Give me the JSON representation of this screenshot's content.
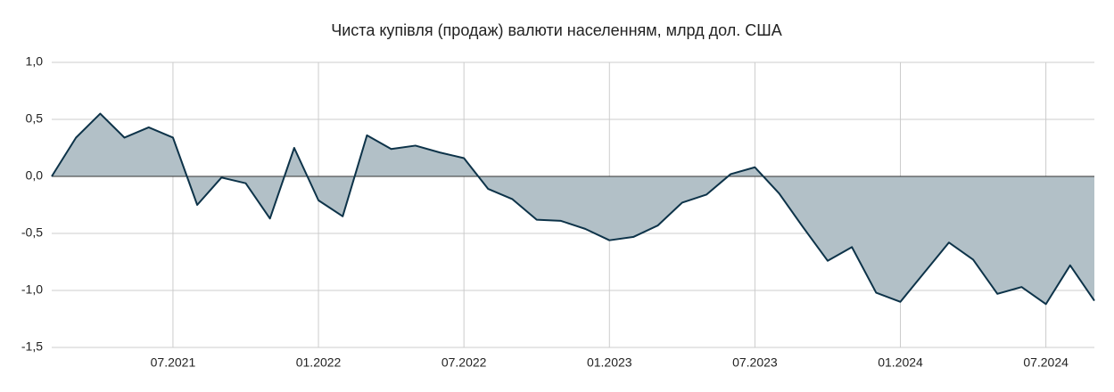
{
  "chart_data": {
    "type": "area",
    "title": "Чиста купівля (продаж) валюти населенням, млрд дол. США",
    "categories": [
      null,
      null,
      null,
      null,
      null,
      "07.2021",
      null,
      null,
      null,
      null,
      null,
      "01.2022",
      null,
      null,
      null,
      null,
      null,
      "07.2022",
      null,
      null,
      null,
      null,
      null,
      "01.2023",
      null,
      null,
      null,
      null,
      null,
      "07.2023",
      null,
      null,
      null,
      null,
      null,
      "01.2024",
      null,
      null,
      null,
      null,
      null,
      "07.2024",
      null,
      null
    ],
    "values": [
      0.0,
      0.34,
      0.55,
      0.34,
      0.43,
      0.34,
      -0.25,
      -0.01,
      -0.06,
      -0.37,
      0.25,
      -0.21,
      -0.35,
      0.36,
      0.24,
      0.27,
      0.21,
      0.16,
      -0.11,
      -0.2,
      -0.38,
      -0.39,
      -0.46,
      -0.56,
      -0.53,
      -0.43,
      -0.23,
      -0.16,
      0.02,
      0.08,
      -0.15,
      -0.45,
      -0.74,
      -0.62,
      -1.02,
      -1.1,
      -0.84,
      -0.58,
      -0.73,
      -1.03,
      -0.97,
      -1.12,
      -0.78,
      -1.09
    ],
    "color": "#0d3349",
    "area_color": "#b2c0c7",
    "ylim": [
      -1.5,
      1.0
    ],
    "yticks": [
      {
        "value": -1.5,
        "label": "-1,5"
      },
      {
        "value": -1.0,
        "label": "-1,0"
      },
      {
        "value": -0.5,
        "label": "-0,5"
      },
      {
        "value": 0.0,
        "label": "0,0"
      },
      {
        "value": 0.5,
        "label": "0,5"
      },
      {
        "value": 1.0,
        "label": "1,0"
      }
    ],
    "grid": true
  }
}
